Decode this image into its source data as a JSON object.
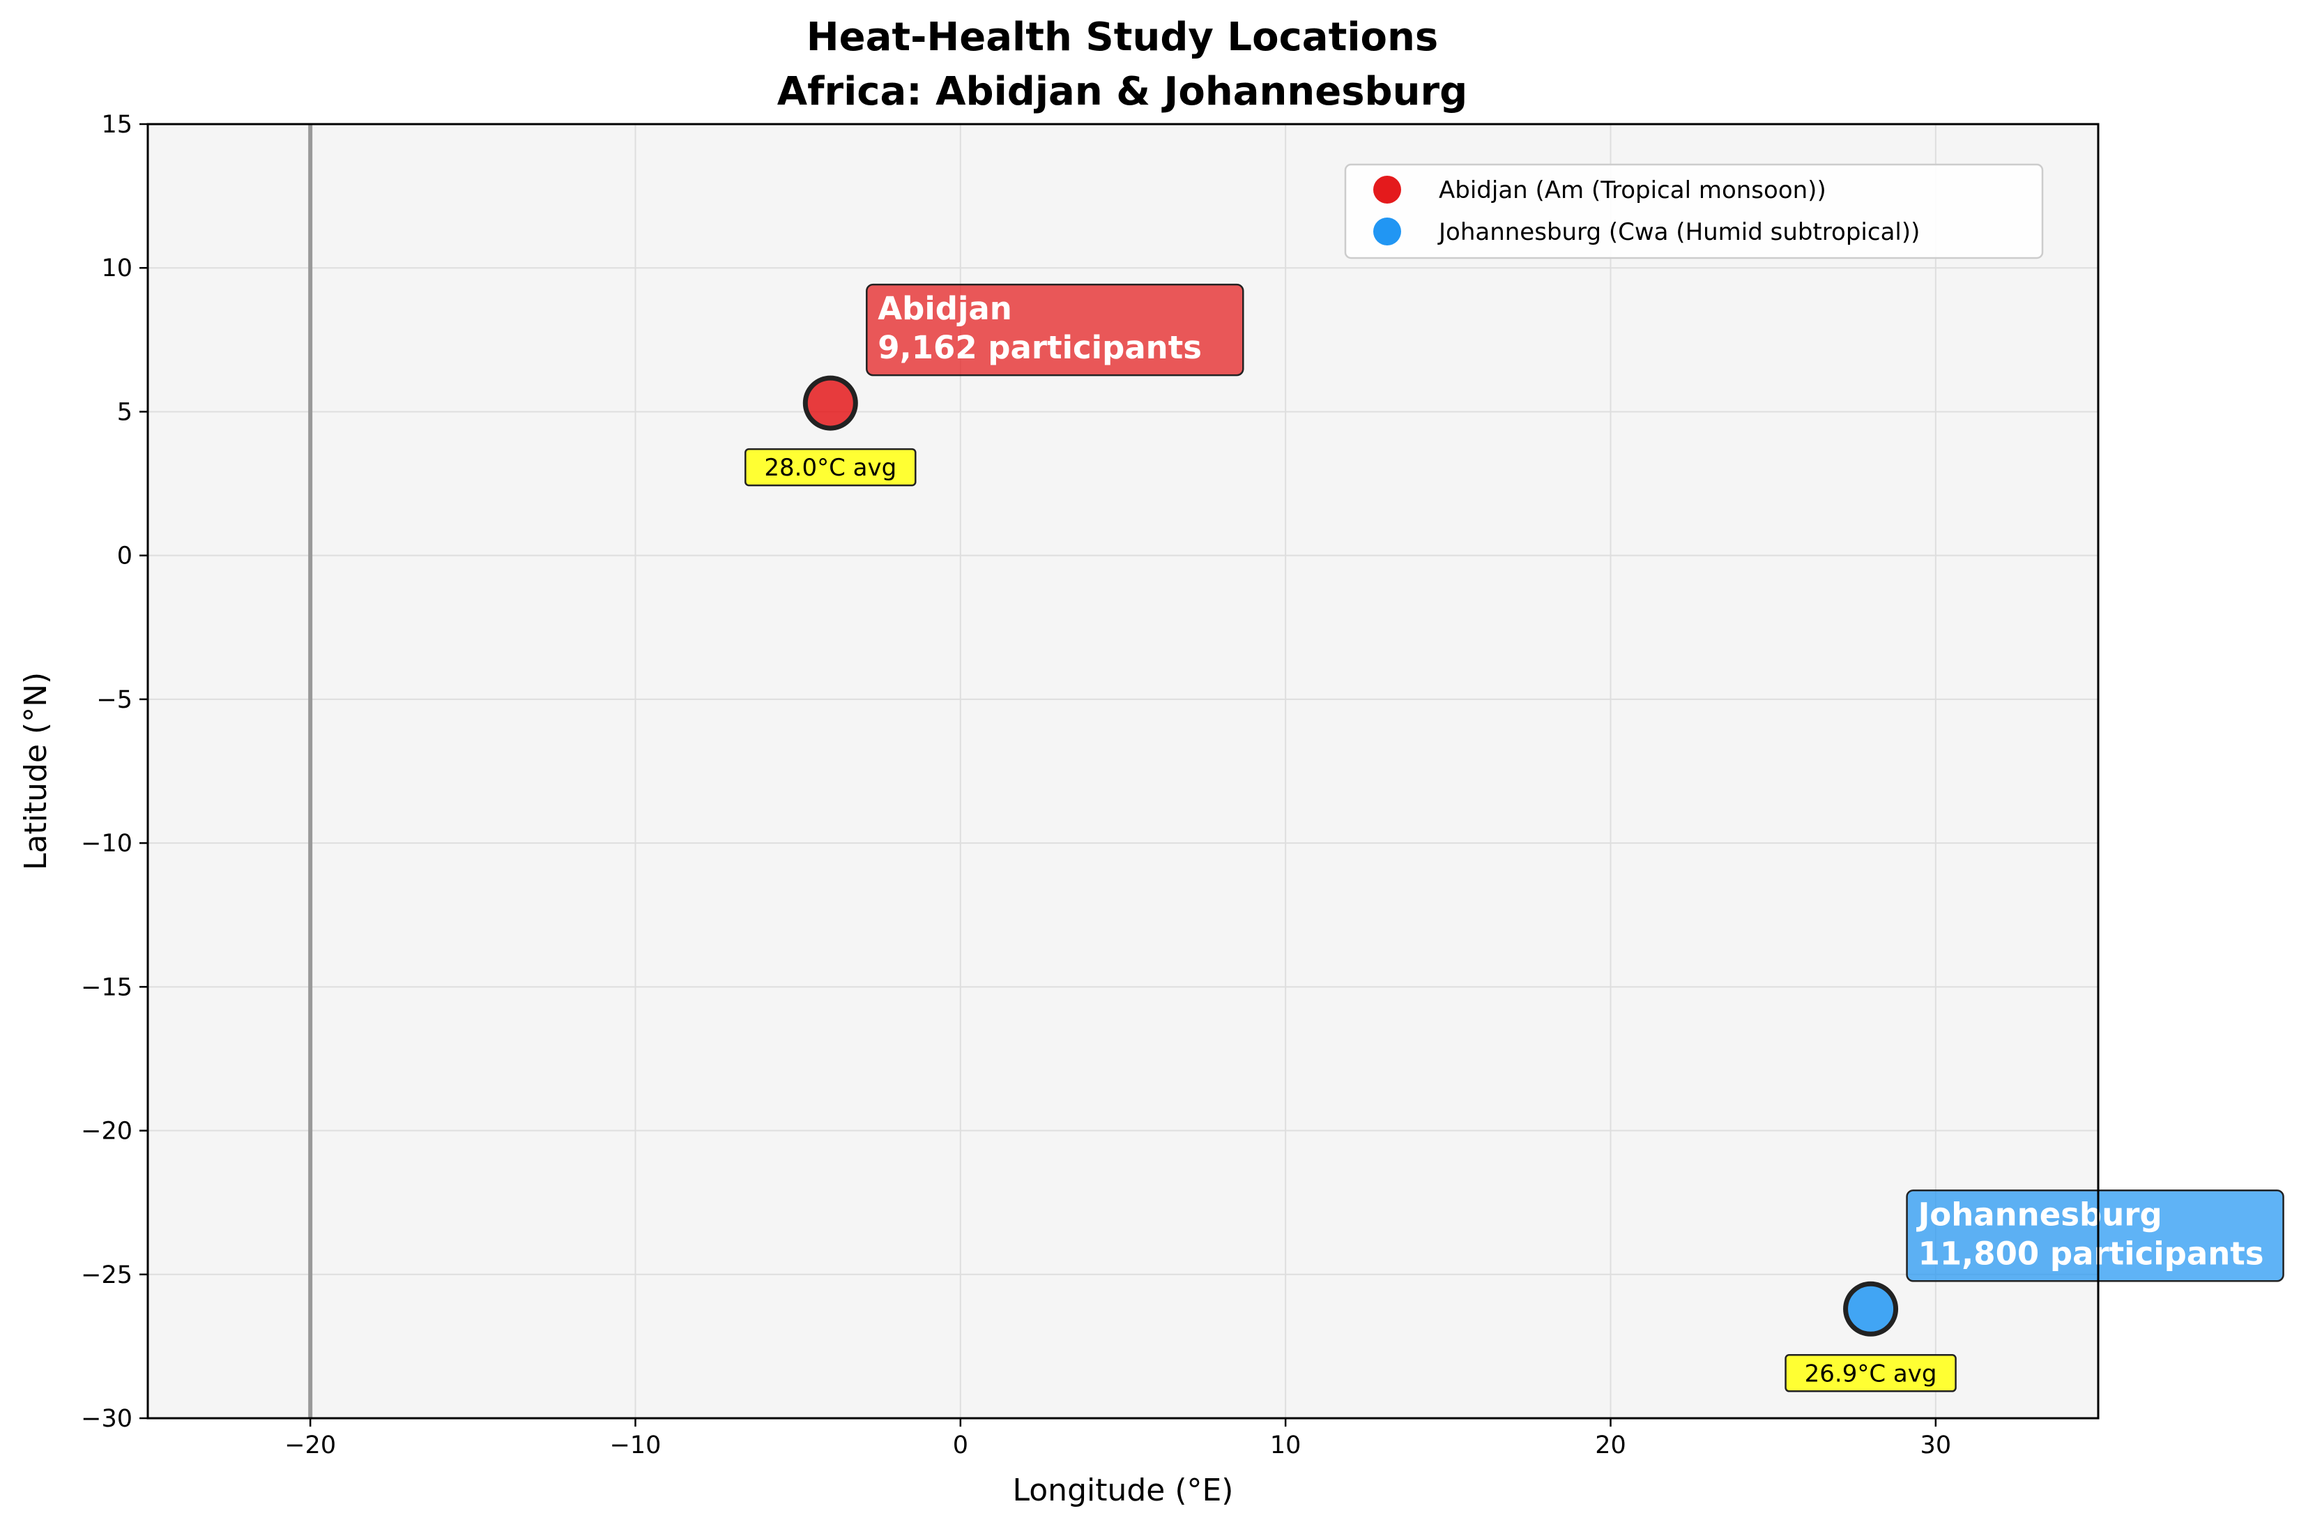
{
  "chart_data": {
    "type": "scatter",
    "title": [
      "Heat-Health Study Locations",
      "Africa: Abidjan & Johannesburg"
    ],
    "xlabel": "Longitude (°E)",
    "ylabel": "Latitude (°N)",
    "xlim": [
      -25,
      35
    ],
    "ylim": [
      -30,
      15
    ],
    "xticks": [
      -20,
      -10,
      0,
      10,
      20,
      30
    ],
    "xtick_labels": [
      "−20",
      "−10",
      "0",
      "10",
      "20",
      "30"
    ],
    "yticks": [
      15,
      10,
      5,
      0,
      -5,
      -10,
      -15,
      -20,
      -25,
      -30
    ],
    "ytick_labels": [
      "15",
      "10",
      "5",
      "0",
      "−5",
      "−10",
      "−15",
      "−20",
      "−25",
      "−30"
    ],
    "grid": true,
    "reference_line_x": -20,
    "legend_position": "upper right",
    "series": [
      {
        "name": "Abidjan (Am (Tropical monsoon))",
        "color": "#e41a1c",
        "points": [
          {
            "x": -4.0,
            "y": 5.3
          }
        ],
        "callout": [
          "Abidjan",
          "9,162 participants"
        ],
        "temperature_label": "28.0°C avg"
      },
      {
        "name": "Johannesburg (Cwa (Humid subtropical))",
        "color": "#2196f3",
        "points": [
          {
            "x": 28.0,
            "y": -26.2
          }
        ],
        "callout": [
          "Johannesburg",
          "11,800 participants"
        ],
        "temperature_label": "26.9°C avg"
      }
    ]
  }
}
